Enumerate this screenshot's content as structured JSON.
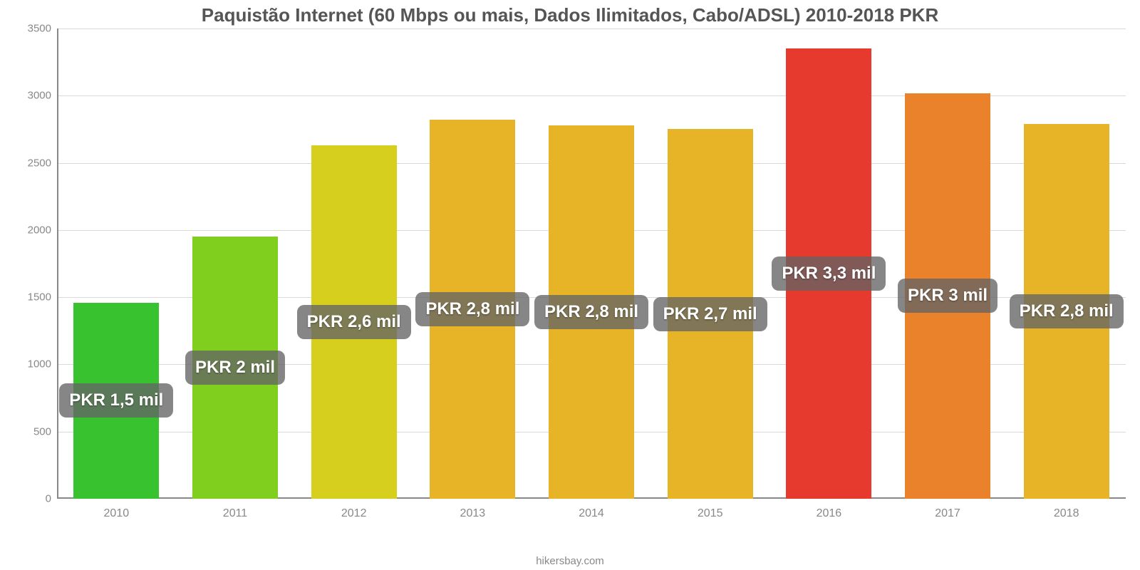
{
  "chart": {
    "type": "bar",
    "title": "Paquistão Internet (60 Mbps ou mais, Dados Ilimitados, Cabo/ADSL) 2010-2018 PKR",
    "title_fontsize": 26,
    "title_color": "#555555",
    "footer": "hikersbay.com",
    "footer_color": "#888888",
    "background_color": "#ffffff",
    "plot": {
      "ymin": 0,
      "ymax": 3500,
      "ytick_step": 500,
      "yticks": [
        0,
        500,
        1000,
        1500,
        2000,
        2500,
        3000,
        3500
      ],
      "grid_color": "#d9d9d9",
      "axis_color": "#888888",
      "ylabel_color": "#888888",
      "ylabel_fontsize": 15,
      "xlabel_color": "#888888",
      "xlabel_fontsize": 16,
      "bar_width_ratio": 0.72
    },
    "value_badge": {
      "bg_color": "rgba(100,100,100,0.78)",
      "text_color": "#ffffff",
      "fontsize": 24,
      "border_radius": 10
    },
    "categories": [
      "2010",
      "2011",
      "2012",
      "2013",
      "2014",
      "2015",
      "2016",
      "2017",
      "2018"
    ],
    "values": [
      1460,
      1950,
      2630,
      2820,
      2780,
      2750,
      3350,
      3020,
      2790
    ],
    "value_labels": [
      "PKR 1,5 mil",
      "PKR 2 mil",
      "PKR 2,6 mil",
      "PKR 2,8 mil",
      "PKR 2,8 mil",
      "PKR 2,7 mil",
      "PKR 3,3 mil",
      "PKR 3 mil",
      "PKR 2,8 mil"
    ],
    "bar_colors": [
      "#39c22f",
      "#80cf1f",
      "#d6cf1e",
      "#e7b427",
      "#e7b427",
      "#e7b427",
      "#e73a2f",
      "#e9822b",
      "#e7b427"
    ]
  }
}
